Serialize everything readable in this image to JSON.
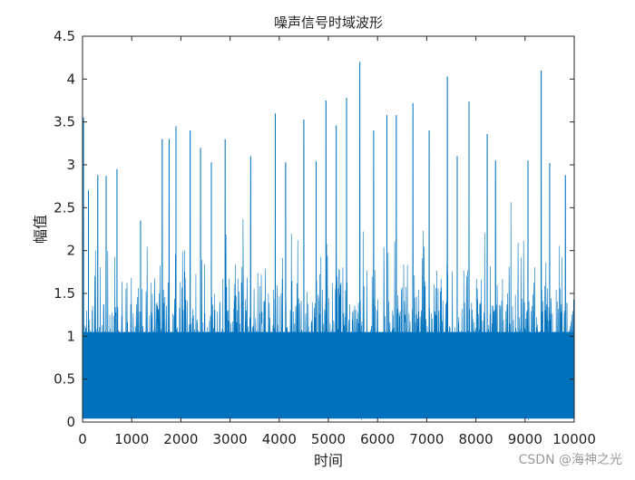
{
  "chart_data": {
    "type": "line",
    "title": "噪声信号时域波形",
    "xlabel": "时间",
    "ylabel": "幅值",
    "xlim": [
      0,
      10000
    ],
    "ylim": [
      0,
      4.5
    ],
    "xticks": [
      0,
      1000,
      2000,
      3000,
      4000,
      5000,
      6000,
      7000,
      8000,
      9000,
      10000
    ],
    "xtick_labels": [
      "0",
      "1000",
      "2000",
      "3000",
      "4000",
      "5000",
      "6000",
      "7000",
      "8000",
      "9000",
      "10000"
    ],
    "yticks": [
      0,
      0.5,
      1,
      1.5,
      2,
      2.5,
      3,
      3.5,
      4,
      4.5
    ],
    "ytick_labels": [
      "0",
      "0.5",
      "1",
      "1.5",
      "2",
      "2.5",
      "3",
      "3.5",
      "4",
      "4.5"
    ],
    "grid": false,
    "line_color": "#0072bd",
    "series": [
      {
        "description_values": "dense noise signal; selected peak samples (x, y)",
        "peaks": [
          [
            20,
            3.55
          ],
          [
            120,
            2.7
          ],
          [
            310,
            2.88
          ],
          [
            480,
            2.87
          ],
          [
            700,
            2.95
          ],
          [
            1180,
            2.35
          ],
          [
            1620,
            3.3
          ],
          [
            1760,
            3.3
          ],
          [
            1900,
            3.45
          ],
          [
            2190,
            3.4
          ],
          [
            2400,
            3.2
          ],
          [
            2620,
            3.03
          ],
          [
            2900,
            3.3
          ],
          [
            3420,
            3.1
          ],
          [
            3920,
            3.6
          ],
          [
            4130,
            3.03
          ],
          [
            4500,
            3.53
          ],
          [
            4750,
            3.04
          ],
          [
            4950,
            3.75
          ],
          [
            5160,
            3.46
          ],
          [
            5370,
            3.78
          ],
          [
            5640,
            4.2
          ],
          [
            5920,
            3.4
          ],
          [
            6190,
            3.58
          ],
          [
            6380,
            3.58
          ],
          [
            6720,
            3.72
          ],
          [
            7050,
            3.4
          ],
          [
            7420,
            4.03
          ],
          [
            7620,
            3.1
          ],
          [
            7860,
            3.74
          ],
          [
            8230,
            3.36
          ],
          [
            8400,
            3.05
          ],
          [
            9060,
            3.05
          ],
          [
            9330,
            4.1
          ],
          [
            9500,
            3.02
          ],
          [
            9820,
            2.88
          ]
        ]
      }
    ]
  },
  "watermark": "CSDN @海神之光"
}
